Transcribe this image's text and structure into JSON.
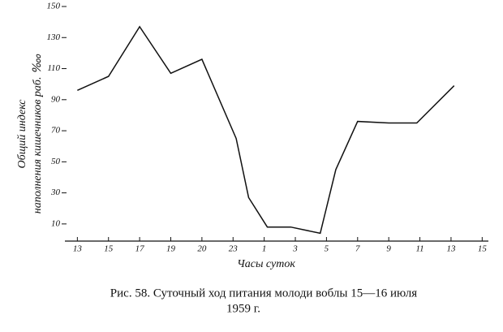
{
  "chart_data": {
    "type": "line",
    "x_label": "Часы суток",
    "y_label": [
      "Общий индекс",
      "наполнения кишечников раб. ‱"
    ],
    "caption": [
      "Рис. 58. Суточный ход питания молоди воблы 15—16 июля",
      "1959 г."
    ],
    "xlim": [
      -0.4,
      13.2
    ],
    "xticks": [
      {
        "value": 0,
        "label": "13"
      },
      {
        "value": 1,
        "label": "15"
      },
      {
        "value": 2,
        "label": "17"
      },
      {
        "value": 3,
        "label": "19"
      },
      {
        "value": 4,
        "label": "20"
      },
      {
        "value": 5,
        "label": "23"
      },
      {
        "value": 6,
        "label": "1"
      },
      {
        "value": 7,
        "label": "3"
      },
      {
        "value": 8,
        "label": "5"
      },
      {
        "value": 9,
        "label": "7"
      },
      {
        "value": 10,
        "label": "9"
      },
      {
        "value": 11,
        "label": "11"
      },
      {
        "value": 12,
        "label": "13"
      },
      {
        "value": 13,
        "label": "15"
      }
    ],
    "ylim": [
      0,
      150
    ],
    "yticks": [
      10,
      30,
      50,
      70,
      90,
      110,
      130,
      150
    ],
    "series": [
      {
        "color": "#111111",
        "x": [
          0,
          1,
          2,
          3,
          4,
          5.1,
          5.5,
          6.1,
          6.85,
          7.8,
          8.3,
          9,
          10,
          10.9,
          12.1
        ],
        "values": [
          96,
          105,
          137,
          107,
          116,
          65,
          27,
          8,
          8,
          4,
          45,
          76,
          75,
          75,
          99
        ]
      }
    ]
  }
}
